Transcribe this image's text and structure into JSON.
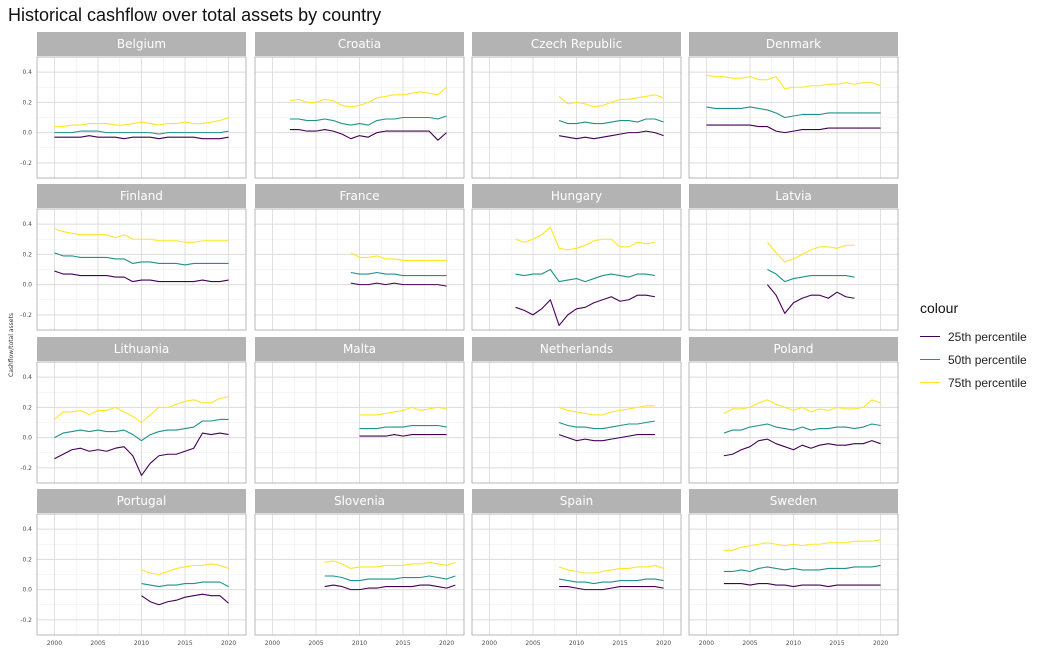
{
  "chart_data": {
    "type": "line",
    "title": "Historical cashflow over total assets by country",
    "xlabel": "",
    "ylabel": "Cashflow/total assets",
    "xlim": [
      1998,
      2022
    ],
    "ylim": [
      -0.3,
      0.5
    ],
    "x_ticks": [
      2000,
      2005,
      2010,
      2015,
      2020
    ],
    "y_ticks": [
      -0.2,
      0.0,
      0.2,
      0.4
    ],
    "x_tick_labels": [
      "2000",
      "2005",
      "2010",
      "2015",
      "2020"
    ],
    "y_tick_labels": [
      "-0.2",
      "0.0",
      "0.2",
      "0.4"
    ],
    "grid": true,
    "facet_layout": "4x4",
    "legend": {
      "title": "colour",
      "position": "right",
      "entries": [
        {
          "name": "25th percentile",
          "color": "#440154"
        },
        {
          "name": "50th percentile",
          "color": "#21908C"
        },
        {
          "name": "75th percentile",
          "color": "#FDE725"
        }
      ]
    },
    "panels": [
      {
        "name": "Belgium",
        "start": 2000,
        "p25": [
          -0.03,
          -0.03,
          -0.03,
          -0.03,
          -0.02,
          -0.03,
          -0.03,
          -0.03,
          -0.04,
          -0.03,
          -0.03,
          -0.03,
          -0.04,
          -0.03,
          -0.03,
          -0.03,
          -0.03,
          -0.04,
          -0.04,
          -0.04,
          -0.03
        ],
        "p50": [
          0.0,
          0.0,
          0.0,
          0.01,
          0.01,
          0.01,
          0.0,
          0.0,
          0.0,
          0.0,
          0.0,
          0.0,
          -0.01,
          0.0,
          0.0,
          0.0,
          0.0,
          0.0,
          0.0,
          0.0,
          0.01
        ],
        "p75": [
          0.04,
          0.04,
          0.05,
          0.05,
          0.06,
          0.06,
          0.06,
          0.05,
          0.05,
          0.06,
          0.07,
          0.06,
          0.05,
          0.06,
          0.06,
          0.07,
          0.06,
          0.06,
          0.07,
          0.08,
          0.1
        ]
      },
      {
        "name": "Croatia",
        "start": 2002,
        "p25": [
          0.02,
          0.02,
          0.01,
          0.01,
          0.02,
          0.01,
          -0.01,
          -0.04,
          -0.02,
          -0.03,
          0.0,
          0.01,
          0.01,
          0.01,
          0.01,
          0.01,
          0.01,
          -0.05,
          0.0
        ],
        "p50": [
          0.09,
          0.09,
          0.08,
          0.08,
          0.09,
          0.08,
          0.06,
          0.05,
          0.06,
          0.05,
          0.08,
          0.09,
          0.09,
          0.1,
          0.1,
          0.1,
          0.1,
          0.09,
          0.11
        ],
        "p75": [
          0.21,
          0.22,
          0.2,
          0.2,
          0.22,
          0.21,
          0.18,
          0.17,
          0.18,
          0.2,
          0.23,
          0.24,
          0.25,
          0.25,
          0.26,
          0.27,
          0.26,
          0.25,
          0.3
        ]
      },
      {
        "name": "Czech Republic",
        "start": 2008,
        "p25": [
          -0.02,
          -0.03,
          -0.04,
          -0.03,
          -0.04,
          -0.03,
          -0.02,
          -0.01,
          0.0,
          0.0,
          0.01,
          0.0,
          -0.02
        ],
        "p50": [
          0.08,
          0.06,
          0.06,
          0.07,
          0.06,
          0.06,
          0.07,
          0.08,
          0.08,
          0.07,
          0.09,
          0.09,
          0.07
        ],
        "p75": [
          0.24,
          0.19,
          0.2,
          0.19,
          0.17,
          0.18,
          0.2,
          0.22,
          0.22,
          0.23,
          0.24,
          0.25,
          0.23
        ]
      },
      {
        "name": "Denmark",
        "start": 2000,
        "p25": [
          0.05,
          0.05,
          0.05,
          0.05,
          0.05,
          0.05,
          0.04,
          0.04,
          0.01,
          0.0,
          0.01,
          0.02,
          0.02,
          0.02,
          0.03,
          0.03,
          0.03,
          0.03,
          0.03,
          0.03,
          0.03
        ],
        "p50": [
          0.17,
          0.16,
          0.16,
          0.16,
          0.16,
          0.17,
          0.16,
          0.15,
          0.13,
          0.1,
          0.11,
          0.12,
          0.12,
          0.12,
          0.13,
          0.13,
          0.13,
          0.13,
          0.13,
          0.13,
          0.13
        ],
        "p75": [
          0.38,
          0.37,
          0.37,
          0.36,
          0.36,
          0.37,
          0.35,
          0.35,
          0.37,
          0.29,
          0.3,
          0.3,
          0.31,
          0.31,
          0.32,
          0.32,
          0.33,
          0.32,
          0.33,
          0.33,
          0.31
        ]
      },
      {
        "name": "Finland",
        "start": 2000,
        "p25": [
          0.09,
          0.07,
          0.07,
          0.06,
          0.06,
          0.06,
          0.06,
          0.05,
          0.05,
          0.02,
          0.03,
          0.03,
          0.02,
          0.02,
          0.02,
          0.02,
          0.02,
          0.03,
          0.02,
          0.02,
          0.03
        ],
        "p50": [
          0.21,
          0.19,
          0.19,
          0.18,
          0.18,
          0.18,
          0.18,
          0.17,
          0.17,
          0.14,
          0.15,
          0.15,
          0.14,
          0.14,
          0.14,
          0.13,
          0.14,
          0.14,
          0.14,
          0.14,
          0.14
        ],
        "p75": [
          0.37,
          0.35,
          0.34,
          0.33,
          0.33,
          0.33,
          0.33,
          0.31,
          0.33,
          0.3,
          0.3,
          0.3,
          0.29,
          0.29,
          0.29,
          0.28,
          0.28,
          0.29,
          0.29,
          0.29,
          0.29
        ]
      },
      {
        "name": "France",
        "start": 2009,
        "p25": [
          0.01,
          0.0,
          0.0,
          0.01,
          0.0,
          0.01,
          0.0,
          0.0,
          0.0,
          0.0,
          0.0,
          -0.01
        ],
        "p50": [
          0.08,
          0.07,
          0.07,
          0.08,
          0.07,
          0.07,
          0.06,
          0.06,
          0.06,
          0.06,
          0.06,
          0.06
        ],
        "p75": [
          0.21,
          0.18,
          0.18,
          0.19,
          0.17,
          0.17,
          0.16,
          0.16,
          0.16,
          0.16,
          0.16,
          0.16
        ]
      },
      {
        "name": "Hungary",
        "start": 2003,
        "p25": [
          -0.15,
          -0.17,
          -0.2,
          -0.16,
          -0.1,
          -0.27,
          -0.2,
          -0.16,
          -0.15,
          -0.12,
          -0.1,
          -0.08,
          -0.11,
          -0.1,
          -0.07,
          -0.07,
          -0.08
        ],
        "p50": [
          0.07,
          0.06,
          0.07,
          0.07,
          0.1,
          0.02,
          0.03,
          0.04,
          0.02,
          0.04,
          0.06,
          0.07,
          0.06,
          0.05,
          0.07,
          0.07,
          0.06
        ],
        "p75": [
          0.3,
          0.28,
          0.3,
          0.33,
          0.38,
          0.24,
          0.23,
          0.24,
          0.26,
          0.29,
          0.3,
          0.3,
          0.25,
          0.25,
          0.28,
          0.27,
          0.28
        ]
      },
      {
        "name": "Latvia",
        "start": 2007,
        "p25": [
          0.0,
          -0.07,
          -0.19,
          -0.12,
          -0.09,
          -0.07,
          -0.07,
          -0.09,
          -0.05,
          -0.08,
          -0.09
        ],
        "p50": [
          0.1,
          0.07,
          0.02,
          0.04,
          0.05,
          0.06,
          0.06,
          0.06,
          0.06,
          0.06,
          0.05
        ],
        "p75": [
          0.28,
          0.21,
          0.15,
          0.17,
          0.2,
          0.23,
          0.25,
          0.25,
          0.24,
          0.26,
          0.26
        ]
      },
      {
        "name": "Lithuania",
        "start": 2000,
        "p25": [
          -0.14,
          -0.11,
          -0.08,
          -0.07,
          -0.09,
          -0.08,
          -0.09,
          -0.07,
          -0.06,
          -0.12,
          -0.25,
          -0.17,
          -0.12,
          -0.11,
          -0.11,
          -0.09,
          -0.07,
          0.03,
          0.02,
          0.03,
          0.02
        ],
        "p50": [
          0.0,
          0.03,
          0.04,
          0.05,
          0.04,
          0.05,
          0.04,
          0.04,
          0.05,
          0.02,
          -0.02,
          0.02,
          0.04,
          0.05,
          0.05,
          0.06,
          0.07,
          0.11,
          0.11,
          0.12,
          0.12
        ],
        "p75": [
          0.12,
          0.17,
          0.17,
          0.18,
          0.15,
          0.18,
          0.18,
          0.2,
          0.17,
          0.14,
          0.1,
          0.15,
          0.2,
          0.2,
          0.22,
          0.24,
          0.25,
          0.23,
          0.23,
          0.26,
          0.27
        ]
      },
      {
        "name": "Malta",
        "start": 2010,
        "p25": [
          0.01,
          0.01,
          0.01,
          0.01,
          0.02,
          0.01,
          0.02,
          0.02,
          0.02,
          0.02,
          0.02
        ],
        "p50": [
          0.06,
          0.06,
          0.06,
          0.07,
          0.07,
          0.07,
          0.08,
          0.08,
          0.08,
          0.08,
          0.07
        ],
        "p75": [
          0.15,
          0.15,
          0.15,
          0.16,
          0.17,
          0.18,
          0.2,
          0.18,
          0.19,
          0.2,
          0.19
        ]
      },
      {
        "name": "Netherlands",
        "start": 2008,
        "p25": [
          0.02,
          0.0,
          -0.02,
          -0.01,
          -0.02,
          -0.02,
          -0.01,
          0.0,
          0.01,
          0.02,
          0.02,
          0.02
        ],
        "p50": [
          0.1,
          0.08,
          0.07,
          0.07,
          0.06,
          0.06,
          0.07,
          0.08,
          0.09,
          0.09,
          0.1,
          0.11
        ],
        "p75": [
          0.2,
          0.18,
          0.17,
          0.16,
          0.15,
          0.15,
          0.17,
          0.18,
          0.19,
          0.2,
          0.21,
          0.21
        ]
      },
      {
        "name": "Poland",
        "start": 2002,
        "p25": [
          -0.12,
          -0.11,
          -0.08,
          -0.06,
          -0.02,
          -0.01,
          -0.04,
          -0.06,
          -0.08,
          -0.05,
          -0.07,
          -0.05,
          -0.04,
          -0.05,
          -0.05,
          -0.04,
          -0.04,
          -0.02,
          -0.04
        ],
        "p50": [
          0.03,
          0.05,
          0.05,
          0.07,
          0.08,
          0.09,
          0.07,
          0.06,
          0.05,
          0.07,
          0.05,
          0.06,
          0.06,
          0.07,
          0.07,
          0.06,
          0.07,
          0.09,
          0.08
        ],
        "p75": [
          0.16,
          0.19,
          0.19,
          0.2,
          0.23,
          0.25,
          0.22,
          0.2,
          0.18,
          0.2,
          0.17,
          0.19,
          0.18,
          0.2,
          0.19,
          0.19,
          0.2,
          0.25,
          0.23
        ]
      },
      {
        "name": "Portugal",
        "start": 2010,
        "p25": [
          -0.04,
          -0.08,
          -0.1,
          -0.08,
          -0.07,
          -0.05,
          -0.04,
          -0.03,
          -0.04,
          -0.04,
          -0.09
        ],
        "p50": [
          0.04,
          0.03,
          0.02,
          0.03,
          0.03,
          0.04,
          0.04,
          0.05,
          0.05,
          0.05,
          0.02
        ],
        "p75": [
          0.13,
          0.11,
          0.1,
          0.12,
          0.14,
          0.15,
          0.16,
          0.16,
          0.17,
          0.16,
          0.14
        ]
      },
      {
        "name": "Slovenia",
        "start": 2006,
        "p25": [
          0.02,
          0.03,
          0.02,
          0.0,
          0.0,
          0.01,
          0.01,
          0.02,
          0.02,
          0.02,
          0.02,
          0.03,
          0.03,
          0.02,
          0.01,
          0.03
        ],
        "p50": [
          0.09,
          0.09,
          0.08,
          0.06,
          0.06,
          0.07,
          0.07,
          0.07,
          0.07,
          0.08,
          0.08,
          0.08,
          0.09,
          0.08,
          0.07,
          0.09
        ],
        "p75": [
          0.18,
          0.19,
          0.17,
          0.14,
          0.15,
          0.15,
          0.15,
          0.16,
          0.16,
          0.16,
          0.17,
          0.17,
          0.18,
          0.17,
          0.16,
          0.18
        ]
      },
      {
        "name": "Spain",
        "start": 2008,
        "p25": [
          0.02,
          0.02,
          0.01,
          0.0,
          0.0,
          0.0,
          0.01,
          0.02,
          0.02,
          0.02,
          0.02,
          0.02,
          0.01
        ],
        "p50": [
          0.07,
          0.06,
          0.05,
          0.05,
          0.04,
          0.05,
          0.05,
          0.06,
          0.06,
          0.06,
          0.07,
          0.07,
          0.06
        ],
        "p75": [
          0.15,
          0.13,
          0.12,
          0.11,
          0.11,
          0.12,
          0.13,
          0.14,
          0.14,
          0.15,
          0.15,
          0.16,
          0.14
        ]
      },
      {
        "name": "Sweden",
        "start": 2002,
        "p25": [
          0.04,
          0.04,
          0.04,
          0.03,
          0.04,
          0.04,
          0.03,
          0.03,
          0.02,
          0.03,
          0.03,
          0.03,
          0.02,
          0.03,
          0.03,
          0.03,
          0.03,
          0.03,
          0.03
        ],
        "p50": [
          0.12,
          0.12,
          0.13,
          0.12,
          0.14,
          0.15,
          0.14,
          0.13,
          0.14,
          0.13,
          0.13,
          0.13,
          0.14,
          0.14,
          0.14,
          0.15,
          0.15,
          0.15,
          0.16
        ],
        "p75": [
          0.26,
          0.26,
          0.28,
          0.29,
          0.3,
          0.31,
          0.3,
          0.29,
          0.3,
          0.29,
          0.3,
          0.3,
          0.31,
          0.31,
          0.31,
          0.32,
          0.32,
          0.32,
          0.33
        ]
      }
    ]
  }
}
